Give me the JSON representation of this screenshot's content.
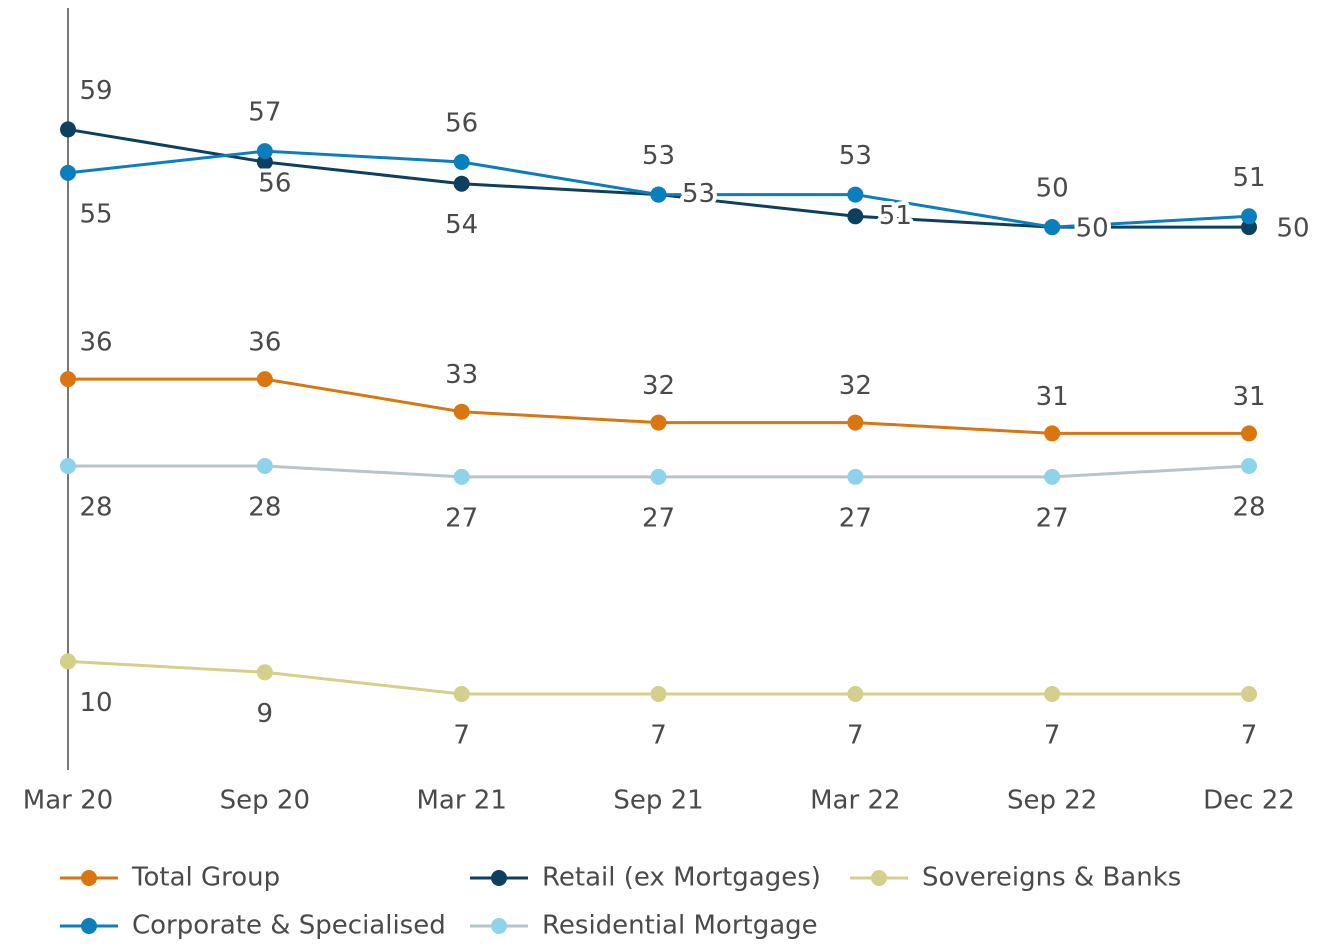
{
  "chart_data": {
    "type": "line",
    "categories": [
      "Mar 20",
      "Sep 20",
      "Mar 21",
      "Sep 21",
      "Mar 22",
      "Sep 22",
      "Dec 22"
    ],
    "ylim": [
      0,
      70
    ],
    "series": [
      {
        "name": "Total Group",
        "color": "#d9760f",
        "values": [
          36,
          36,
          33,
          32,
          32,
          31,
          31
        ]
      },
      {
        "name": "Retail (ex Mortgages)",
        "color": "#0d3f5f",
        "values": [
          59,
          56,
          54,
          53,
          51,
          50,
          50
        ]
      },
      {
        "name": "Sovereigns & Banks",
        "color": "#d4cf8a",
        "values": [
          10,
          9,
          7,
          7,
          7,
          7,
          7
        ]
      },
      {
        "name": "Corporate & Specialised",
        "color": "#0b7fbd",
        "values": [
          55,
          57,
          56,
          53,
          53,
          50,
          51
        ]
      },
      {
        "name": "Residential Mortgage",
        "color": "#b7c4c9",
        "marker_color": "#8fd3ea",
        "values": [
          28,
          28,
          27,
          27,
          27,
          27,
          28
        ]
      }
    ]
  }
}
